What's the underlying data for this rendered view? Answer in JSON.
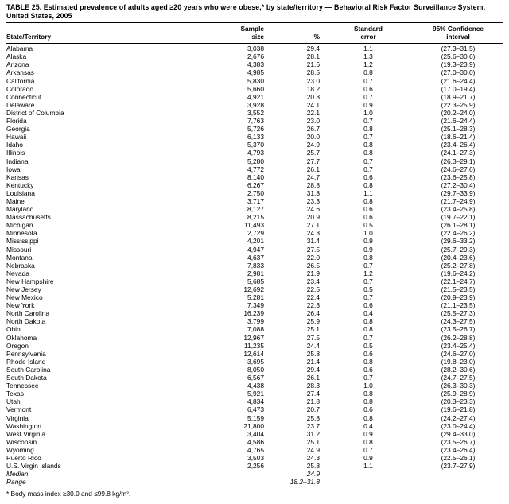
{
  "title": "TABLE 25. Estimated prevalence of adults aged ≥20 years who were obese,* by state/territory — Behavioral Risk Factor Surveillance System, United States, 2005",
  "footnote": "* Body mass index ≥30.0 and ≤99.8 kg/m².",
  "table": {
    "headers": {
      "state": "State/Territory",
      "sample_line1": "Sample",
      "sample_line2": "size",
      "pct": "%",
      "se_line1": "Standard",
      "se_line2": "error",
      "ci_line1": "95% Confidence",
      "ci_line2": "interval"
    },
    "rows": [
      {
        "state": "Alabama",
        "sample": "3,038",
        "pct": "29.4",
        "se": "1.1",
        "ci": "(27.3–31.5)"
      },
      {
        "state": "Alaska",
        "sample": "2,676",
        "pct": "28.1",
        "se": "1.3",
        "ci": "(25.6–30.6)"
      },
      {
        "state": "Arizona",
        "sample": "4,383",
        "pct": "21.6",
        "se": "1.2",
        "ci": "(19.3–23.9)"
      },
      {
        "state": "Arkansas",
        "sample": "4,985",
        "pct": "28.5",
        "se": "0.8",
        "ci": "(27.0–30.0)"
      },
      {
        "state": "California",
        "sample": "5,830",
        "pct": "23.0",
        "se": "0.7",
        "ci": "(21.6–24.4)"
      },
      {
        "state": "Colorado",
        "sample": "5,660",
        "pct": "18.2",
        "se": "0.6",
        "ci": "(17.0–19.4)"
      },
      {
        "state": "Connecticut",
        "sample": "4,921",
        "pct": "20.3",
        "se": "0.7",
        "ci": "(18.9–21.7)"
      },
      {
        "state": "Delaware",
        "sample": "3,928",
        "pct": "24.1",
        "se": "0.9",
        "ci": "(22.3–25.9)"
      },
      {
        "state": "District of Columbia",
        "sample": "3,552",
        "pct": "22.1",
        "se": "1.0",
        "ci": "(20.2–24.0)"
      },
      {
        "state": "Florida",
        "sample": "7,763",
        "pct": "23.0",
        "se": "0.7",
        "ci": "(21.6–24.4)"
      },
      {
        "state": "Georgia",
        "sample": "5,726",
        "pct": "26.7",
        "se": "0.8",
        "ci": "(25.1–28.3)"
      },
      {
        "state": "Hawaii",
        "sample": "6,133",
        "pct": "20.0",
        "se": "0.7",
        "ci": "(18.6–21.4)"
      },
      {
        "state": "Idaho",
        "sample": "5,370",
        "pct": "24.9",
        "se": "0.8",
        "ci": "(23.4–26.4)"
      },
      {
        "state": "Illinois",
        "sample": "4,793",
        "pct": "25.7",
        "se": "0.8",
        "ci": "(24.1–27.3)"
      },
      {
        "state": "Indiana",
        "sample": "5,280",
        "pct": "27.7",
        "se": "0.7",
        "ci": "(26.3–29.1)"
      },
      {
        "state": "Iowa",
        "sample": "4,772",
        "pct": "26.1",
        "se": "0.7",
        "ci": "(24.6–27.6)"
      },
      {
        "state": "Kansas",
        "sample": "8,140",
        "pct": "24.7",
        "se": "0.6",
        "ci": "(23.6–25.8)"
      },
      {
        "state": "Kentucky",
        "sample": "6,267",
        "pct": "28.8",
        "se": "0.8",
        "ci": "(27.2–30.4)"
      },
      {
        "state": "Louisiana",
        "sample": "2,750",
        "pct": "31.8",
        "se": "1.1",
        "ci": "(29.7–33.9)"
      },
      {
        "state": "Maine",
        "sample": "3,717",
        "pct": "23.3",
        "se": "0.8",
        "ci": "(21.7–24.9)"
      },
      {
        "state": "Maryland",
        "sample": "8,127",
        "pct": "24.6",
        "se": "0.6",
        "ci": "(23.4–25.8)"
      },
      {
        "state": "Massachusetts",
        "sample": "8,215",
        "pct": "20.9",
        "se": "0.6",
        "ci": "(19.7–22.1)"
      },
      {
        "state": "Michigan",
        "sample": "11,493",
        "pct": "27.1",
        "se": "0.5",
        "ci": "(26.1–28.1)"
      },
      {
        "state": "Minnesota",
        "sample": "2,729",
        "pct": "24.3",
        "se": "1.0",
        "ci": "(22.4–26.2)"
      },
      {
        "state": "Mississippi",
        "sample": "4,201",
        "pct": "31.4",
        "se": "0.9",
        "ci": "(29.6–33.2)"
      },
      {
        "state": "Missouri",
        "sample": "4,947",
        "pct": "27.5",
        "se": "0.9",
        "ci": "(25.7–29.3)"
      },
      {
        "state": "Montana",
        "sample": "4,637",
        "pct": "22.0",
        "se": "0.8",
        "ci": "(20.4–23.6)"
      },
      {
        "state": "Nebraska",
        "sample": "7,833",
        "pct": "26.5",
        "se": "0.7",
        "ci": "(25.2–27.8)"
      },
      {
        "state": "Nevada",
        "sample": "2,981",
        "pct": "21.9",
        "se": "1.2",
        "ci": "(19.6–24.2)"
      },
      {
        "state": "New Hampshire",
        "sample": "5,685",
        "pct": "23.4",
        "se": "0.7",
        "ci": "(22.1–24.7)"
      },
      {
        "state": "New Jersey",
        "sample": "12,692",
        "pct": "22.5",
        "se": "0.5",
        "ci": "(21.5–23.5)"
      },
      {
        "state": "New Mexico",
        "sample": "5,281",
        "pct": "22.4",
        "se": "0.7",
        "ci": "(20.9–23.9)"
      },
      {
        "state": "New York",
        "sample": "7,349",
        "pct": "22.3",
        "se": "0.6",
        "ci": "(21.1–23.5)"
      },
      {
        "state": "North Carolina",
        "sample": "16,239",
        "pct": "26.4",
        "se": "0.4",
        "ci": "(25.5–27.3)"
      },
      {
        "state": "North Dakota",
        "sample": "3,799",
        "pct": "25.9",
        "se": "0.8",
        "ci": "(24.3–27.5)"
      },
      {
        "state": "Ohio",
        "sample": "7,088",
        "pct": "25.1",
        "se": "0.8",
        "ci": "(23.5–26.7)"
      },
      {
        "state": "Oklahoma",
        "sample": "12,967",
        "pct": "27.5",
        "se": "0.7",
        "ci": "(26.2–28.8)"
      },
      {
        "state": "Oregon",
        "sample": "11,235",
        "pct": "24.4",
        "se": "0.5",
        "ci": "(23.4–25.4)"
      },
      {
        "state": "Pennsylvania",
        "sample": "12,614",
        "pct": "25.8",
        "se": "0.6",
        "ci": "(24.6–27.0)"
      },
      {
        "state": "Rhode Island",
        "sample": "3,695",
        "pct": "21.4",
        "se": "0.8",
        "ci": "(19.8–23.0)"
      },
      {
        "state": "South Carolina",
        "sample": "8,050",
        "pct": "29.4",
        "se": "0.6",
        "ci": "(28.2–30.6)"
      },
      {
        "state": "South Dakota",
        "sample": "6,567",
        "pct": "26.1",
        "se": "0.7",
        "ci": "(24.7–27.5)"
      },
      {
        "state": "Tennessee",
        "sample": "4,438",
        "pct": "28.3",
        "se": "1.0",
        "ci": "(26.3–30.3)"
      },
      {
        "state": "Texas",
        "sample": "5,921",
        "pct": "27.4",
        "se": "0.8",
        "ci": "(25.9–28.9)"
      },
      {
        "state": "Utah",
        "sample": "4,834",
        "pct": "21.8",
        "se": "0.8",
        "ci": "(20.3–23.3)"
      },
      {
        "state": "Vermont",
        "sample": "6,473",
        "pct": "20.7",
        "se": "0.6",
        "ci": "(19.6–21.8)"
      },
      {
        "state": "Virginia",
        "sample": "5,159",
        "pct": "25.8",
        "se": "0.8",
        "ci": "(24.2–27.4)"
      },
      {
        "state": "Washington",
        "sample": "21,800",
        "pct": "23.7",
        "se": "0.4",
        "ci": "(23.0–24.4)"
      },
      {
        "state": "West Virginia",
        "sample": "3,404",
        "pct": "31.2",
        "se": "0.9",
        "ci": "(29.4–33.0)"
      },
      {
        "state": "Wisconsin",
        "sample": "4,586",
        "pct": "25.1",
        "se": "0.8",
        "ci": "(23.5–26.7)"
      },
      {
        "state": "Wyoming",
        "sample": "4,765",
        "pct": "24.9",
        "se": "0.7",
        "ci": "(23.4–26.4)"
      },
      {
        "state": "Puerto Rico",
        "sample": "3,503",
        "pct": "24.3",
        "se": "0.9",
        "ci": "(22.5–26.1)"
      },
      {
        "state": "U.S. Virgin Islands",
        "sample": "2,256",
        "pct": "25.8",
        "se": "1.1",
        "ci": "(23.7–27.9)"
      }
    ],
    "summary_rows": [
      {
        "state": "Median",
        "sample": "",
        "pct": "24.9",
        "se": "",
        "ci": ""
      },
      {
        "state": "Range",
        "sample": "",
        "pct": "18.2–31.8",
        "se": "",
        "ci": ""
      }
    ]
  }
}
